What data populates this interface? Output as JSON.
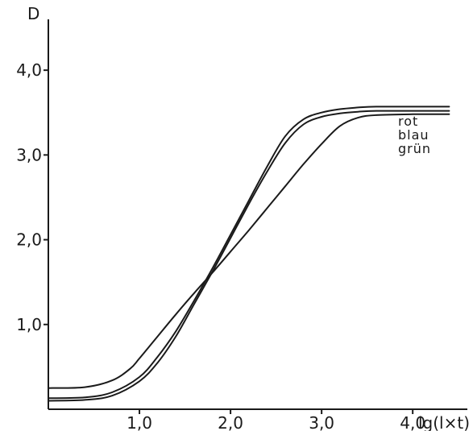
{
  "chart_data": {
    "type": "line",
    "title": "",
    "xlabel": "lg(l×t)",
    "ylabel": "D",
    "xlim": [
      0,
      4.6
    ],
    "ylim": [
      0,
      4.6
    ],
    "x_ticks": [
      1.0,
      2.0,
      3.0,
      4.0
    ],
    "x_tick_labels": [
      "1,0",
      "2,0",
      "3,0",
      "4,0"
    ],
    "y_ticks": [
      1.0,
      2.0,
      3.0,
      4.0
    ],
    "y_tick_labels": [
      "1,0",
      "2,0",
      "3,0",
      "4,0"
    ],
    "grid": false,
    "series": [
      {
        "name": "rot",
        "x": [
          0.0,
          0.4,
          0.7,
          1.0,
          1.2,
          1.4,
          1.6,
          1.8,
          2.0,
          2.2,
          2.4,
          2.6,
          2.8,
          3.0,
          3.2,
          3.4,
          3.6,
          4.0,
          4.4
        ],
        "y": [
          0.13,
          0.14,
          0.2,
          0.38,
          0.62,
          0.92,
          1.28,
          1.66,
          2.06,
          2.46,
          2.86,
          3.22,
          3.42,
          3.5,
          3.54,
          3.56,
          3.57,
          3.57,
          3.57
        ]
      },
      {
        "name": "blau",
        "x": [
          0.0,
          0.4,
          0.7,
          1.0,
          1.2,
          1.4,
          1.6,
          1.8,
          2.0,
          2.2,
          2.4,
          2.6,
          2.8,
          3.0,
          3.2,
          3.4,
          3.6,
          4.0,
          4.4
        ],
        "y": [
          0.1,
          0.11,
          0.16,
          0.33,
          0.55,
          0.86,
          1.24,
          1.62,
          2.02,
          2.42,
          2.8,
          3.14,
          3.36,
          3.45,
          3.49,
          3.51,
          3.52,
          3.52,
          3.52
        ]
      },
      {
        "name": "grün",
        "x": [
          0.0,
          0.4,
          0.7,
          0.9,
          1.0,
          1.2,
          1.4,
          1.6,
          1.8,
          2.0,
          2.2,
          2.4,
          2.6,
          2.8,
          3.0,
          3.2,
          3.4,
          3.6,
          4.0,
          4.4
        ],
        "y": [
          0.25,
          0.26,
          0.34,
          0.48,
          0.6,
          0.86,
          1.12,
          1.37,
          1.61,
          1.86,
          2.11,
          2.37,
          2.63,
          2.89,
          3.13,
          3.34,
          3.44,
          3.47,
          3.48,
          3.48
        ]
      }
    ]
  }
}
